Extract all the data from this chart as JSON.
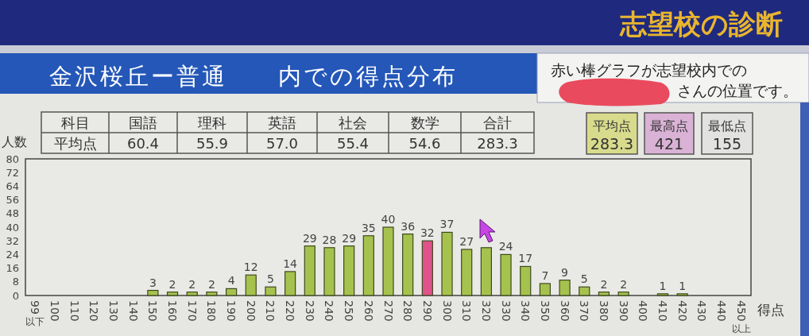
{
  "chart_data": {
    "type": "bar",
    "title": "金沢桜丘ー普通　　内での得点分布",
    "xlabel": "得点",
    "ylabel": "人数",
    "categories": [
      "99以下",
      "100",
      "110",
      "120",
      "130",
      "140",
      "150",
      "160",
      "170",
      "180",
      "190",
      "200",
      "210",
      "220",
      "230",
      "240",
      "250",
      "260",
      "270",
      "280",
      "290",
      "300",
      "310",
      "320",
      "330",
      "340",
      "350",
      "360",
      "370",
      "380",
      "390",
      "400",
      "410",
      "420",
      "430",
      "440",
      "450以上"
    ],
    "values": [
      0,
      0,
      0,
      0,
      0,
      0,
      3,
      2,
      2,
      2,
      4,
      12,
      5,
      14,
      29,
      28,
      29,
      35,
      40,
      36,
      32,
      37,
      27,
      28,
      24,
      17,
      7,
      9,
      5,
      2,
      2,
      0,
      1,
      1,
      0,
      0,
      0
    ],
    "colors": [
      "#a6c24e",
      "#a6c24e",
      "#a6c24e",
      "#a6c24e",
      "#a6c24e",
      "#a6c24e",
      "#a6c24e",
      "#a6c24e",
      "#a6c24e",
      "#a6c24e",
      "#a6c24e",
      "#a6c24e",
      "#a6c24e",
      "#a6c24e",
      "#a6c24e",
      "#a6c24e",
      "#a6c24e",
      "#a6c24e",
      "#a6c24e",
      "#a6c24e",
      "#e0528a",
      "#a6c24e",
      "#a6c24e",
      "#a6c24e",
      "#a6c24e",
      "#a6c24e",
      "#a6c24e",
      "#a6c24e",
      "#a6c24e",
      "#a6c24e",
      "#a6c24e",
      "#a6c24e",
      "#a6c24e",
      "#a6c24e",
      "#a6c24e",
      "#a6c24e",
      "#a6c24e"
    ],
    "value_labels": [
      null,
      null,
      null,
      null,
      null,
      null,
      "3",
      "2",
      "2",
      "2",
      "4",
      "12",
      "5",
      "14",
      "29",
      "28",
      "29",
      "35",
      "40",
      "36",
      "32",
      "37",
      "27",
      null,
      "24",
      "17",
      "7",
      "9",
      "5",
      "2",
      "2",
      null,
      "1",
      "1",
      null,
      null,
      null
    ],
    "ylim": [
      0,
      80
    ],
    "yticks": [
      0,
      8,
      16,
      24,
      32,
      40,
      48,
      56,
      64,
      72,
      80
    ],
    "annotations": [
      "志望校の診断",
      "赤い棒グラフが志望校内での",
      "さんの位置です。",
      "科目",
      "国語",
      "理科",
      "英語",
      "社会",
      "数学",
      "合計",
      "平均点",
      "60.4",
      "55.9",
      "57.0",
      "55.4",
      "54.6",
      "283.3",
      "平均点",
      "283.3",
      "最高点",
      "421",
      "最低点",
      "155"
    ]
  }
}
